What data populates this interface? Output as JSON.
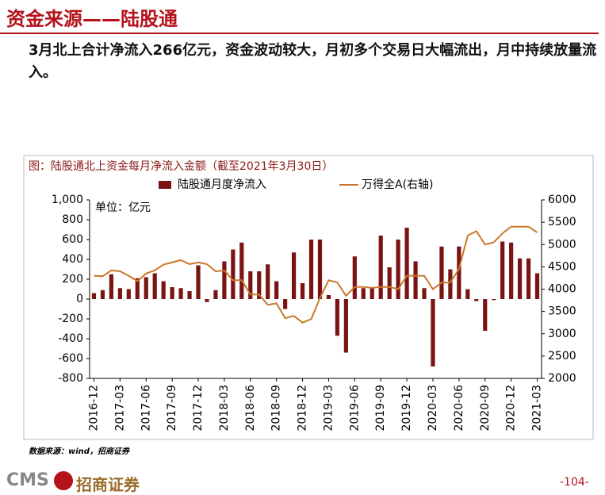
{
  "header": {
    "title": "资金来源——陆股通",
    "subtitle": "3月北上合计净流入266亿元，资金波动较大，月初多个交易日大幅流出，月中持续放量流入。"
  },
  "chart_data": {
    "type": "bar",
    "title": "图：陆股通北上资金每月净流入金额（截至2021年3月30日）",
    "annotation": "单位：亿元",
    "categories": [
      "2016-12",
      null,
      null,
      "2017-03",
      null,
      null,
      "2017-06",
      null,
      null,
      "2017-09",
      null,
      null,
      "2017-12",
      null,
      null,
      "2018-03",
      null,
      null,
      "2018-06",
      null,
      null,
      "2018-09",
      null,
      null,
      "2018-12",
      null,
      null,
      "2019-03",
      null,
      null,
      "2019-06",
      null,
      null,
      "2019-09",
      null,
      null,
      "2019-12",
      null,
      null,
      "2020-03",
      null,
      null,
      "2020-06",
      null,
      null,
      "2020-09",
      null,
      null,
      "2020-12",
      null,
      null,
      "2021-03"
    ],
    "series": [
      {
        "name": "陆股通月度净流入",
        "color": "#7a1414",
        "values": [
          60,
          90,
          250,
          110,
          100,
          210,
          220,
          260,
          180,
          120,
          110,
          80,
          340,
          -30,
          90,
          380,
          500,
          570,
          280,
          280,
          350,
          180,
          -100,
          470,
          160,
          600,
          600,
          40,
          -370,
          -540,
          430,
          110,
          110,
          640,
          320,
          600,
          720,
          380,
          110,
          -680,
          530,
          300,
          530,
          100,
          -20,
          -320,
          -10,
          580,
          570,
          410,
          410,
          260
        ]
      },
      {
        "name": "万得全A(右轴)",
        "color": "#c9782a",
        "type": "line",
        "axis": "y2",
        "values": [
          4300,
          4290,
          4420,
          4400,
          4300,
          4180,
          4350,
          4420,
          4550,
          4600,
          4650,
          4560,
          4600,
          4560,
          4400,
          4420,
          4200,
          4200,
          3880,
          3880,
          3650,
          3680,
          3350,
          3400,
          3250,
          3330,
          3800,
          4200,
          4150,
          3850,
          4050,
          4050,
          4030,
          4050,
          4050,
          4000,
          4300,
          4300,
          4300,
          4000,
          4150,
          4150,
          4450,
          5200,
          5300,
          5000,
          5050,
          5250,
          5400,
          5400,
          5400,
          5270
        ]
      }
    ],
    "ylim": [
      -800,
      1000
    ],
    "yticks": [
      -800,
      -600,
      -400,
      -200,
      0,
      200,
      400,
      600,
      800,
      {
        "value": 1000,
        "label": "1,000"
      }
    ],
    "y2lim": [
      2000,
      6000
    ],
    "y2ticks": [
      2000,
      2500,
      3000,
      3500,
      4000,
      4500,
      5000,
      5500,
      6000
    ],
    "legend": "top"
  },
  "source": "数据来源：wind，招商证券",
  "footer": {
    "logo": "CMS",
    "brand": "招商证券",
    "page": "-104-"
  }
}
